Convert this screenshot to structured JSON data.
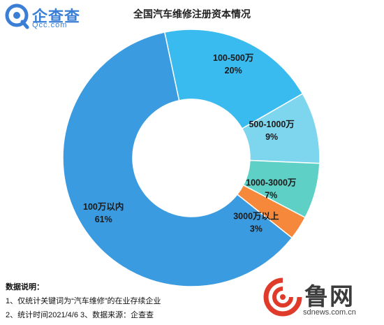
{
  "logo": {
    "name": "企查查",
    "domain": "Qcc.com"
  },
  "watermark": {
    "name": "鲁网",
    "domain": "sdnews.com.cn"
  },
  "notes": {
    "heading": "数据说明：",
    "line1": "1、仅统计关键词为“汽车维修”的在业存续企业",
    "line2": "2、统计时间2021/4/6   3、数据来源：企查查"
  },
  "colors": {
    "primary": "#3a9be0",
    "sky": "#39bbef",
    "light_cyan": "#7ed6ee",
    "teal": "#5fd0c6",
    "orange": "#f5883a"
  },
  "chart_data": {
    "type": "pie",
    "variant": "donut",
    "title": "全国汽车维修注册资本情况",
    "slices": [
      {
        "label": "100-500万",
        "value_label": "20%",
        "value": 20,
        "color": "#39bbef"
      },
      {
        "label": "500-1000万",
        "value_label": "9%",
        "value": 9,
        "color": "#7ed6ee"
      },
      {
        "label": "1000-3000万",
        "value_label": "7%",
        "value": 7,
        "color": "#5fd0c6"
      },
      {
        "label": "3000万以上",
        "value_label": "3%",
        "value": 3,
        "color": "#f5883a"
      },
      {
        "label": "100万以内",
        "value_label": "61%",
        "value": 61,
        "color": "#3a9be0"
      }
    ]
  }
}
